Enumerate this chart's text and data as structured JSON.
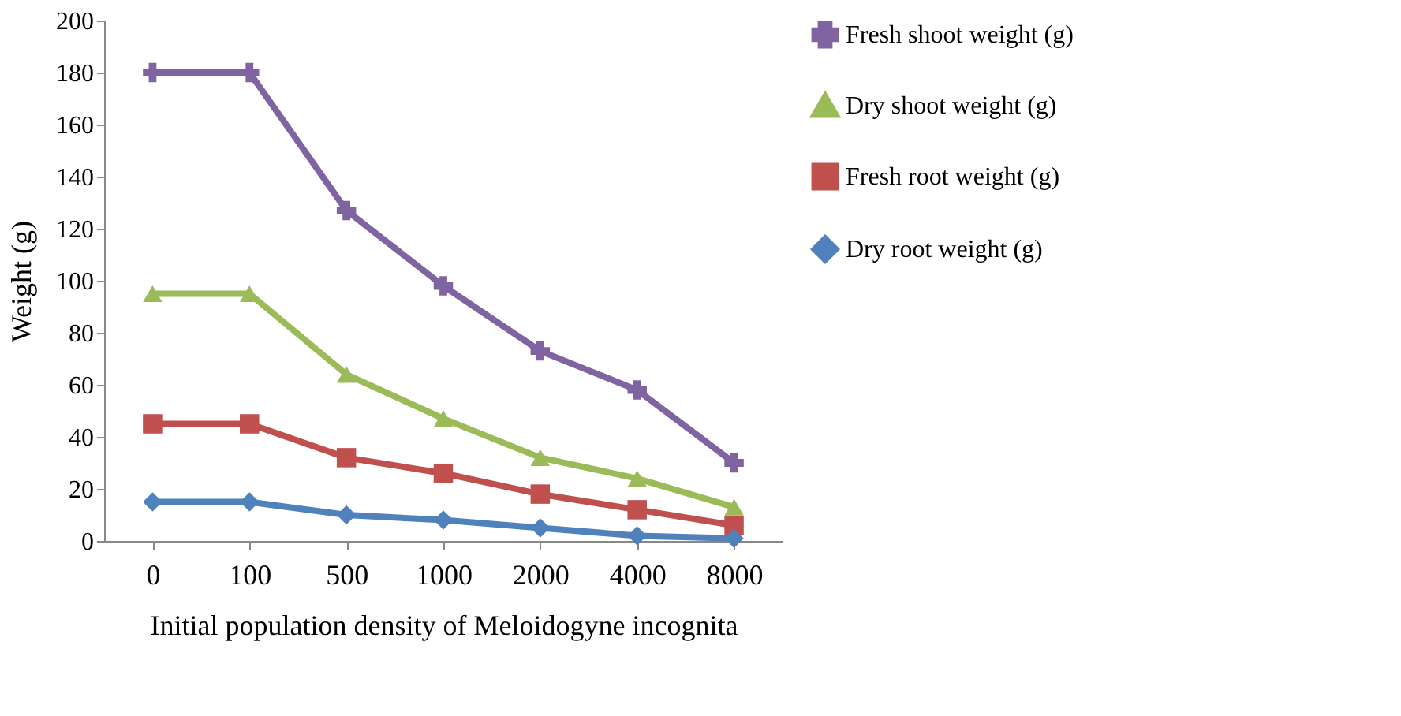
{
  "chart_data": {
    "type": "line",
    "xlabel": "Initial population density of Meloidogyne incognita",
    "ylabel": "Weight (g)",
    "categories": [
      "0",
      "100",
      "500",
      "1000",
      "2000",
      "4000",
      "8000"
    ],
    "series": [
      {
        "name": "Fresh shoot weight (g)",
        "color": "#8064a2",
        "marker": "cross",
        "values": [
          180,
          180,
          127,
          98,
          73,
          58,
          30
        ]
      },
      {
        "name": "Dry shoot weight (g)",
        "color": "#9bbb59",
        "marker": "triangle",
        "values": [
          95,
          95,
          64,
          47,
          32,
          24,
          13
        ]
      },
      {
        "name": "Fresh root weight (g)",
        "color": "#c0504d",
        "marker": "square",
        "values": [
          45,
          45,
          32,
          26,
          18,
          12,
          6
        ]
      },
      {
        "name": "Dry root weight (g)",
        "color": "#4f81bd",
        "marker": "diamond",
        "values": [
          15,
          15,
          10,
          8,
          5,
          2,
          1
        ]
      }
    ],
    "ylim": [
      0,
      200
    ],
    "yticks": [
      0,
      20,
      40,
      60,
      80,
      100,
      120,
      140,
      160,
      180,
      200
    ],
    "grid": false,
    "legend": "right",
    "line_style": "solid"
  }
}
